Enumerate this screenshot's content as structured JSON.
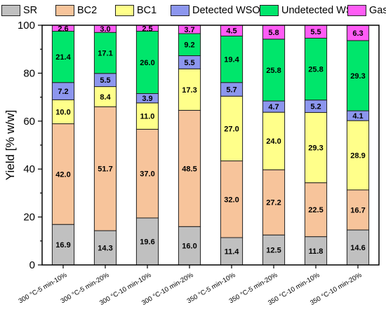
{
  "chart_data": {
    "type": "bar",
    "stacked": true,
    "title": "",
    "xlabel": "",
    "ylabel": "Yield [% w/w]",
    "ylim": [
      0,
      100
    ],
    "yticks": [
      "0",
      "20",
      "40",
      "60",
      "80",
      "100"
    ],
    "legend_position": "top",
    "grid": false,
    "categories": [
      "300 °C-5 min-10%",
      "300 °C-5 min-20%",
      "300 °C-10 min-10%",
      "300 °C-10 min-20%",
      "350 °C-5 min-10%",
      "350 °C-5 min-20%",
      "350 °C-10 min-10%",
      "350 °C-10 min-20%"
    ],
    "series": [
      {
        "name": "SR",
        "color": "#c0c0c0",
        "values": [
          16.9,
          14.3,
          19.6,
          16.0,
          11.4,
          12.5,
          11.8,
          14.6
        ]
      },
      {
        "name": "BC2",
        "color": "#f7c49b",
        "values": [
          42.0,
          51.7,
          37.0,
          48.5,
          32.0,
          27.2,
          22.5,
          16.7
        ]
      },
      {
        "name": "BC1",
        "color": "#ffff8a",
        "values": [
          10.0,
          8.4,
          11.0,
          17.3,
          27.0,
          24.0,
          29.3,
          28.9
        ]
      },
      {
        "name": "Detected WSO",
        "color": "#8c96ee",
        "values": [
          7.2,
          5.5,
          3.9,
          5.5,
          5.7,
          4.7,
          5.2,
          4.1
        ]
      },
      {
        "name": "Undetected WSO",
        "color": "#00e66b",
        "values": [
          21.4,
          17.1,
          26.0,
          9.2,
          19.4,
          25.8,
          25.8,
          29.3
        ]
      },
      {
        "name": "Gas",
        "color": "#ff5cf5",
        "values": [
          2.6,
          3.0,
          2.5,
          3.7,
          4.5,
          5.8,
          5.5,
          6.3
        ]
      }
    ],
    "data_labels": [
      [
        "16.9",
        "14.3",
        "19.6",
        "16.0",
        "11.4",
        "12.5",
        "11.8",
        "14.6"
      ],
      [
        "42.0",
        "51.7",
        "37.0",
        "48.5",
        "32.0",
        "27.2",
        "22.5",
        "16.7"
      ],
      [
        "10.0",
        "8.4",
        "11.0",
        "17.3",
        "27.0",
        "24.0",
        "29.3",
        "28.9"
      ],
      [
        "7.2",
        "5.5",
        "3.9",
        "5.5",
        "5.7",
        "4.7",
        "5.2",
        "4.1"
      ],
      [
        "21.4",
        "17.1",
        "26.0",
        "9.2",
        "19.4",
        "25.8",
        "25.8",
        "29.3"
      ],
      [
        "2.6",
        "3.0",
        "2.5",
        "3.7",
        "4.5",
        "5.8",
        "5.5",
        "6.3"
      ]
    ]
  }
}
